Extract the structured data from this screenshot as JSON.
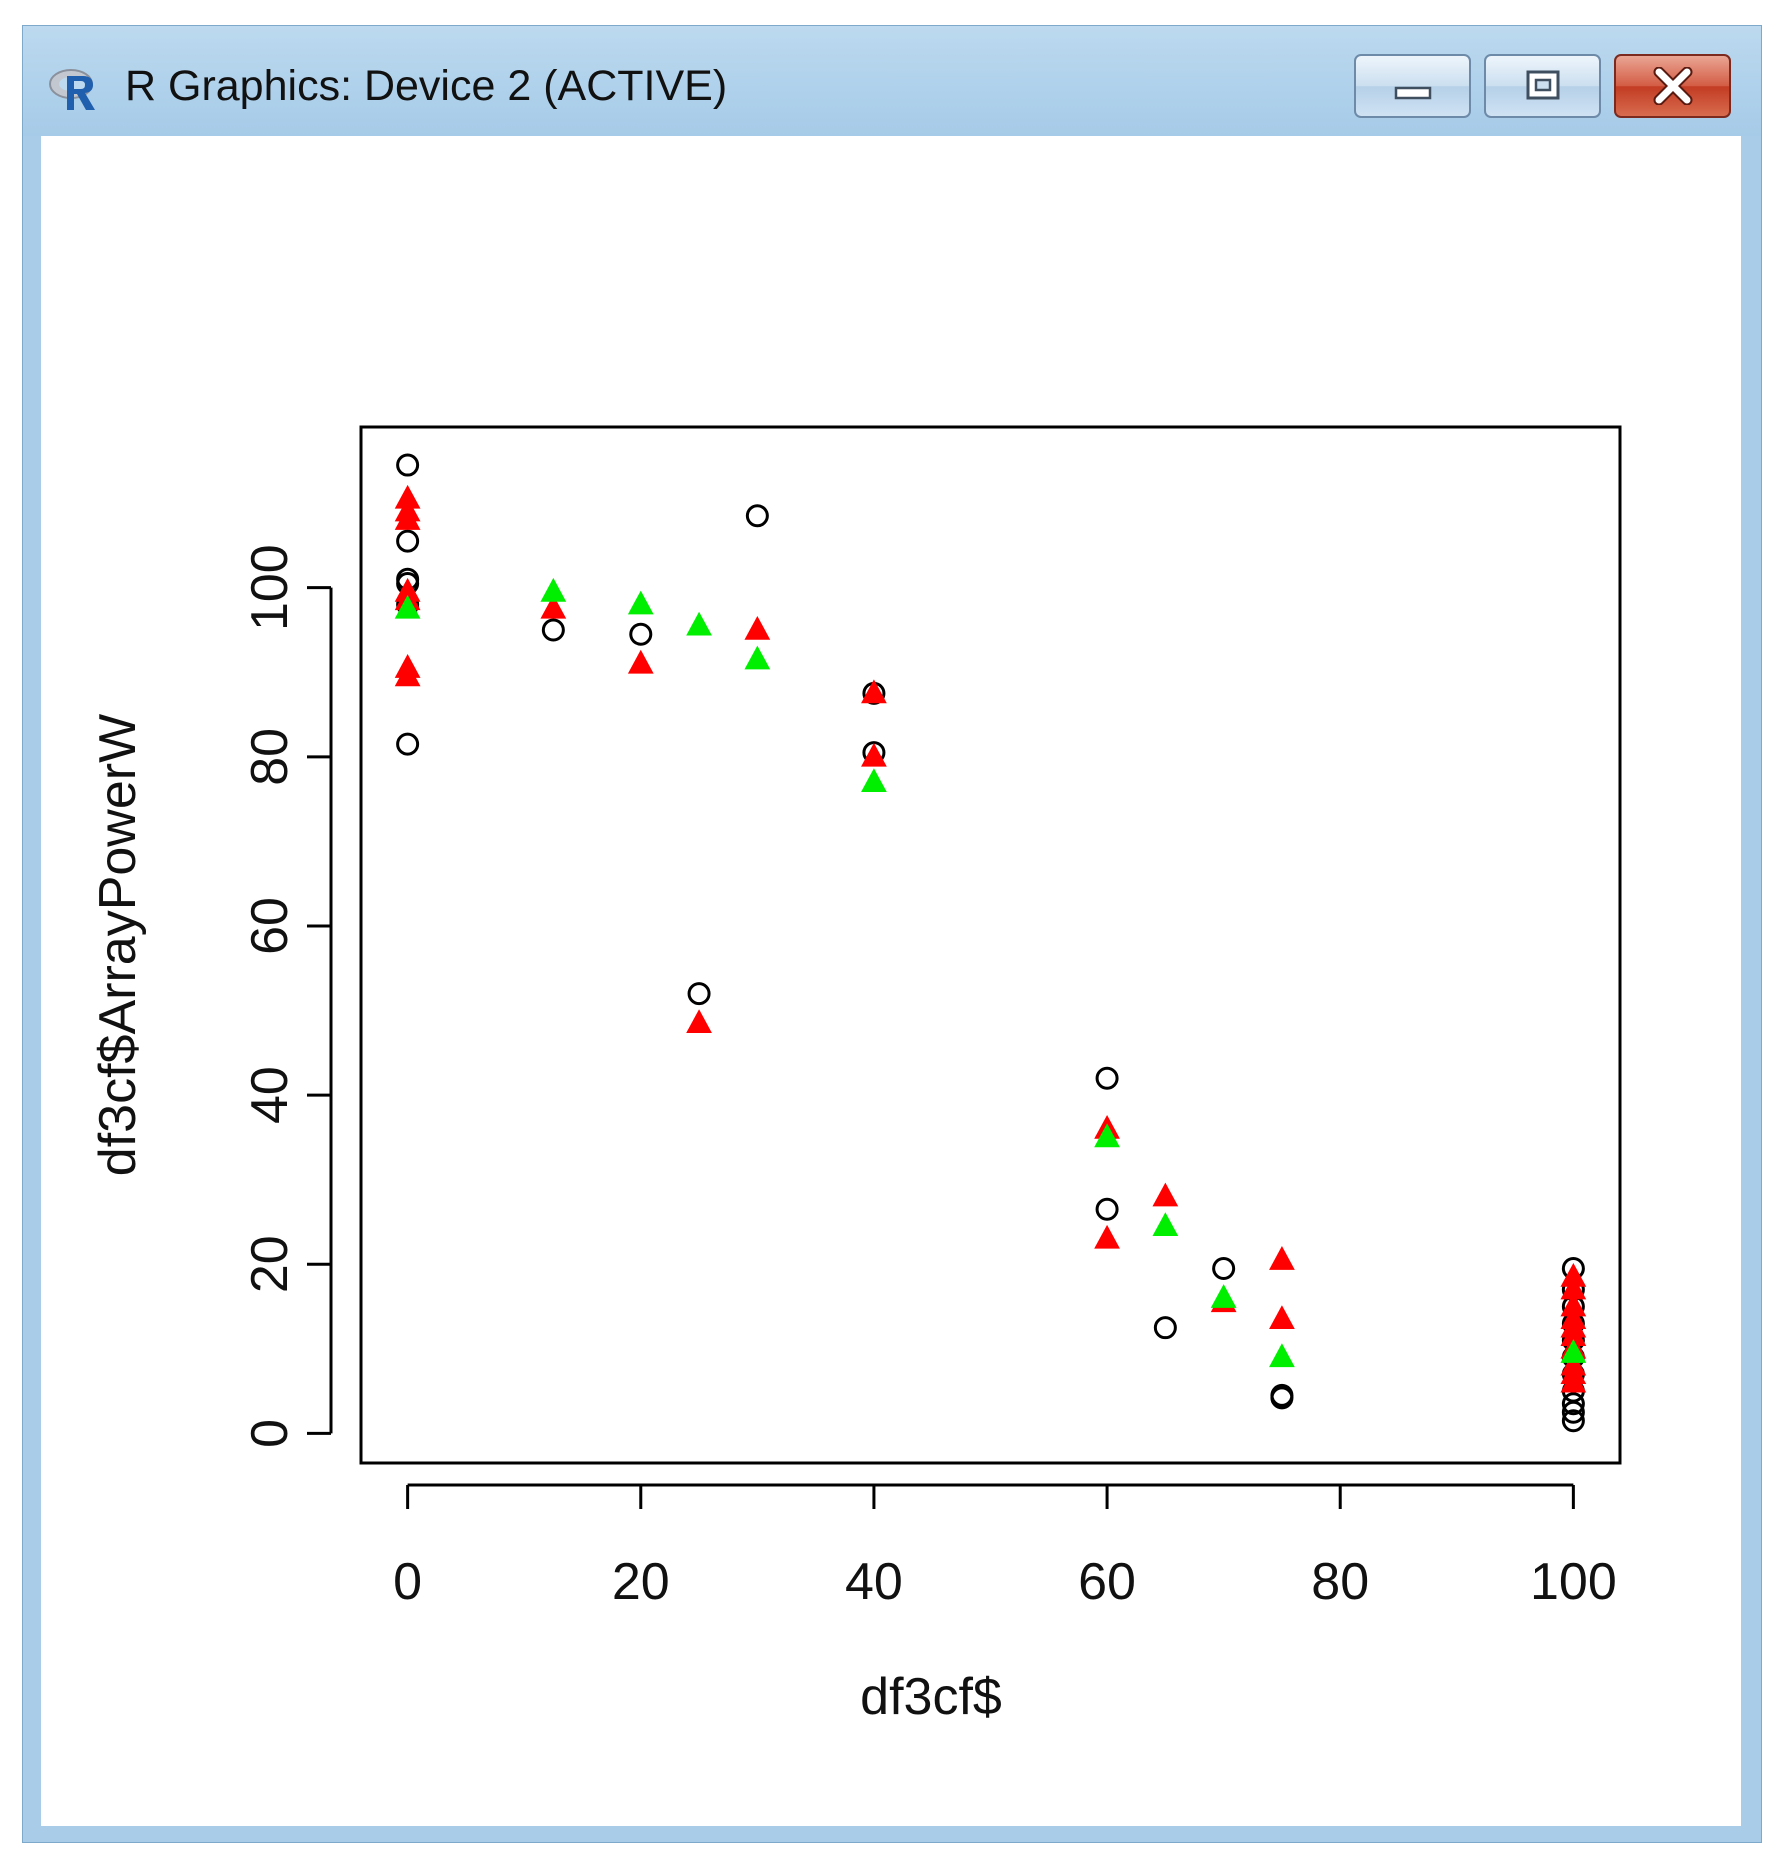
{
  "window": {
    "title": "R Graphics: Device 2 (ACTIVE)",
    "icon": "r-logo-icon",
    "buttons": [
      {
        "name": "minimize",
        "icon": "minimize-icon"
      },
      {
        "name": "maximize",
        "icon": "maximize-icon"
      },
      {
        "name": "close",
        "icon": "close-icon"
      }
    ]
  },
  "chart_data": {
    "type": "scatter",
    "xlabel": "df3cf$",
    "ylabel": "df3cf$ArrayPowerW",
    "xlim": [
      -4,
      104
    ],
    "ylim": [
      -3.5,
      119
    ],
    "xticks": [
      0,
      20,
      40,
      60,
      80,
      100
    ],
    "xtick_labels": [
      "0",
      "20",
      "40",
      "60",
      "80",
      "100"
    ],
    "yticks": [
      0,
      20,
      40,
      60,
      80,
      100
    ],
    "ytick_labels": [
      "0",
      "20",
      "40",
      "60",
      "80",
      "100"
    ],
    "grid": false,
    "series": [
      {
        "marker": "open-circle",
        "color": "#000000",
        "points": [
          [
            0,
            114.5
          ],
          [
            0,
            105.5
          ],
          [
            0,
            101
          ],
          [
            0,
            100.5
          ],
          [
            0,
            98
          ],
          [
            0,
            81.5
          ],
          [
            12.5,
            95
          ],
          [
            20,
            94.5
          ],
          [
            25,
            52
          ],
          [
            30,
            108.5
          ],
          [
            40,
            87.5
          ],
          [
            40,
            80.5
          ],
          [
            60,
            42
          ],
          [
            60,
            26.5
          ],
          [
            65,
            12.5
          ],
          [
            70,
            19.5
          ],
          [
            75,
            4.5
          ],
          [
            75,
            4.2
          ],
          [
            100,
            19.5
          ],
          [
            100,
            17
          ],
          [
            100,
            15
          ],
          [
            100,
            13
          ],
          [
            100,
            11
          ],
          [
            100,
            9
          ],
          [
            100,
            7
          ],
          [
            100,
            5
          ],
          [
            100,
            3.5
          ],
          [
            100,
            2.5
          ],
          [
            100,
            1.5
          ]
        ]
      },
      {
        "marker": "filled-triangle",
        "color": "#ff0000",
        "points": [
          [
            0,
            110.5
          ],
          [
            0,
            109
          ],
          [
            0,
            108
          ],
          [
            0,
            99.5
          ],
          [
            0,
            98.5
          ],
          [
            0,
            90.5
          ],
          [
            0,
            89.5
          ],
          [
            12.5,
            97.5
          ],
          [
            20,
            91
          ],
          [
            25,
            48.5
          ],
          [
            30,
            95
          ],
          [
            40,
            87.5
          ],
          [
            40,
            80
          ],
          [
            60,
            36
          ],
          [
            60,
            23
          ],
          [
            65,
            28
          ],
          [
            70,
            15.5
          ],
          [
            75,
            20.5
          ],
          [
            75,
            13.5
          ],
          [
            100,
            18.5
          ],
          [
            100,
            17
          ],
          [
            100,
            15
          ],
          [
            100,
            13.5
          ],
          [
            100,
            12.5
          ],
          [
            100,
            11.5
          ],
          [
            100,
            10
          ],
          [
            100,
            8
          ],
          [
            100,
            7
          ],
          [
            100,
            6
          ]
        ]
      },
      {
        "marker": "filled-triangle",
        "color": "#00ee00",
        "points": [
          [
            0,
            97.5
          ],
          [
            12.5,
            99.5
          ],
          [
            20,
            98
          ],
          [
            25,
            95.5
          ],
          [
            30,
            91.5
          ],
          [
            40,
            77
          ],
          [
            60,
            35
          ],
          [
            65,
            24.5
          ],
          [
            70,
            16
          ],
          [
            75,
            9
          ],
          [
            100,
            9.5
          ]
        ]
      }
    ]
  }
}
